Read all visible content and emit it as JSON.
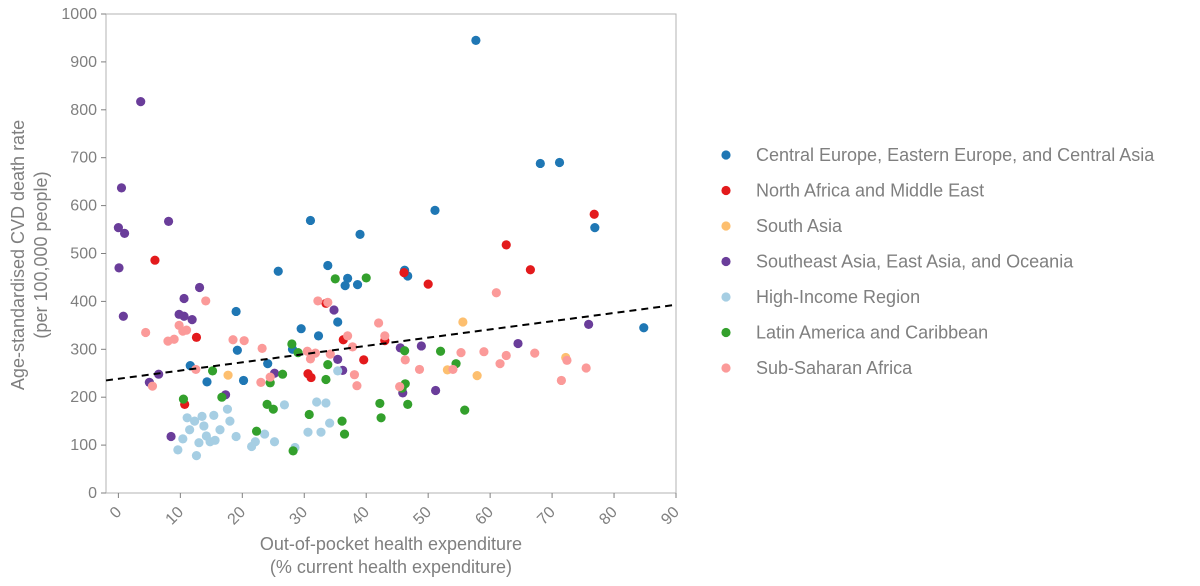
{
  "chart_data": {
    "type": "scatter",
    "title": "",
    "xlabel": "Out-of-pocket health expenditure",
    "xlabel_sub": "(% current health expenditure)",
    "ylabel": "Age-standardised CVD death rate",
    "ylabel_sub": "(per 100,000 people)",
    "xlim": [
      -2,
      90
    ],
    "ylim": [
      0,
      1000
    ],
    "x_ticks": [
      0,
      10,
      20,
      30,
      40,
      50,
      60,
      70,
      80,
      90
    ],
    "y_ticks": [
      0,
      100,
      200,
      300,
      400,
      500,
      600,
      700,
      800,
      900,
      1000
    ],
    "grid": false,
    "legend_position": "right",
    "trendline": {
      "style": "dashed",
      "color": "#000000",
      "start": [
        -2,
        235
      ],
      "end": [
        90,
        393
      ]
    },
    "series": [
      {
        "name": "Central Europe, Eastern Europe, and Central Asia",
        "color": "#1f77b4",
        "points": [
          [
            57.7,
            945
          ],
          [
            68.1,
            688
          ],
          [
            71.2,
            690
          ],
          [
            76.9,
            554
          ],
          [
            51.1,
            590
          ],
          [
            31.0,
            569
          ],
          [
            39.0,
            540
          ],
          [
            46.2,
            465
          ],
          [
            46.7,
            453
          ],
          [
            25.8,
            463
          ],
          [
            33.8,
            475
          ],
          [
            37.0,
            448
          ],
          [
            38.6,
            435
          ],
          [
            36.6,
            433
          ],
          [
            35.4,
            357
          ],
          [
            32.3,
            328
          ],
          [
            29.5,
            343
          ],
          [
            19.0,
            379
          ],
          [
            19.2,
            298
          ],
          [
            20.2,
            235
          ],
          [
            24.1,
            270
          ],
          [
            28.1,
            300
          ],
          [
            11.6,
            266
          ],
          [
            14.3,
            232
          ],
          [
            84.8,
            345
          ]
        ]
      },
      {
        "name": "North Africa and Middle East",
        "color": "#e31a1c",
        "points": [
          [
            76.8,
            582
          ],
          [
            62.6,
            518
          ],
          [
            66.5,
            466
          ],
          [
            46.1,
            460
          ],
          [
            50.0,
            436
          ],
          [
            33.5,
            396
          ],
          [
            36.3,
            320
          ],
          [
            43.0,
            318
          ],
          [
            39.6,
            278
          ],
          [
            30.6,
            249
          ],
          [
            31.1,
            241
          ],
          [
            12.6,
            325
          ],
          [
            10.7,
            185
          ],
          [
            5.9,
            486
          ]
        ]
      },
      {
        "name": "South Asia",
        "color": "#fdbf6f",
        "points": [
          [
            55.6,
            357
          ],
          [
            53.1,
            257
          ],
          [
            57.9,
            245
          ],
          [
            72.2,
            283
          ],
          [
            17.7,
            246
          ]
        ]
      },
      {
        "name": "Southeast Asia, East Asia, and Oceania",
        "color": "#6a3d9a",
        "points": [
          [
            3.6,
            817
          ],
          [
            0.5,
            637
          ],
          [
            0.0,
            554
          ],
          [
            1.0,
            542
          ],
          [
            0.1,
            470
          ],
          [
            8.1,
            567
          ],
          [
            0.8,
            369
          ],
          [
            13.1,
            429
          ],
          [
            10.6,
            406
          ],
          [
            9.8,
            373
          ],
          [
            10.6,
            369
          ],
          [
            11.9,
            362
          ],
          [
            34.8,
            382
          ],
          [
            35.4,
            279
          ],
          [
            36.2,
            256
          ],
          [
            45.5,
            303
          ],
          [
            45.9,
            209
          ],
          [
            48.9,
            307
          ],
          [
            51.2,
            214
          ],
          [
            64.5,
            312
          ],
          [
            75.9,
            352
          ],
          [
            25.2,
            250
          ],
          [
            17.3,
            205
          ],
          [
            8.5,
            118
          ],
          [
            6.5,
            248
          ],
          [
            5.0,
            231
          ]
        ]
      },
      {
        "name": "High-Income Region",
        "color": "#a6cee3",
        "points": [
          [
            11.1,
            157
          ],
          [
            11.5,
            132
          ],
          [
            12.3,
            150
          ],
          [
            13.5,
            160
          ],
          [
            13.8,
            140
          ],
          [
            14.8,
            107
          ],
          [
            15.4,
            162
          ],
          [
            17.6,
            175
          ],
          [
            16.4,
            132
          ],
          [
            18.0,
            150
          ],
          [
            19.0,
            118
          ],
          [
            21.5,
            97
          ],
          [
            22.1,
            107
          ],
          [
            23.6,
            123
          ],
          [
            25.2,
            107
          ],
          [
            26.8,
            184
          ],
          [
            28.5,
            95
          ],
          [
            30.6,
            127
          ],
          [
            32.0,
            190
          ],
          [
            33.5,
            188
          ],
          [
            34.1,
            146
          ],
          [
            32.7,
            127
          ],
          [
            35.4,
            255
          ],
          [
            9.6,
            90
          ],
          [
            10.4,
            113
          ],
          [
            12.6,
            78
          ],
          [
            13.0,
            105
          ],
          [
            14.2,
            119
          ],
          [
            15.6,
            110
          ]
        ]
      },
      {
        "name": "Latin America and Caribbean",
        "color": "#33a02c",
        "points": [
          [
            35.0,
            447
          ],
          [
            40.0,
            449
          ],
          [
            28.0,
            311
          ],
          [
            29.0,
            293
          ],
          [
            33.5,
            237
          ],
          [
            33.8,
            268
          ],
          [
            24.0,
            185
          ],
          [
            24.5,
            230
          ],
          [
            25.0,
            175
          ],
          [
            26.5,
            248
          ],
          [
            30.8,
            164
          ],
          [
            36.1,
            150
          ],
          [
            36.5,
            123
          ],
          [
            42.2,
            187
          ],
          [
            42.4,
            157
          ],
          [
            45.8,
            219
          ],
          [
            46.3,
            228
          ],
          [
            46.7,
            185
          ],
          [
            46.2,
            297
          ],
          [
            52.0,
            296
          ],
          [
            54.5,
            270
          ],
          [
            55.9,
            173
          ],
          [
            28.2,
            88
          ],
          [
            16.7,
            200
          ],
          [
            15.2,
            255
          ],
          [
            10.5,
            196
          ],
          [
            22.3,
            129
          ]
        ]
      },
      {
        "name": "Sub-Saharan Africa",
        "color": "#fb9a99",
        "points": [
          [
            4.4,
            335
          ],
          [
            5.5,
            223
          ],
          [
            8.0,
            317
          ],
          [
            9.0,
            321
          ],
          [
            9.8,
            350
          ],
          [
            10.4,
            338
          ],
          [
            11.0,
            340
          ],
          [
            12.5,
            258
          ],
          [
            14.1,
            401
          ],
          [
            18.5,
            320
          ],
          [
            20.3,
            318
          ],
          [
            23.2,
            302
          ],
          [
            23.0,
            231
          ],
          [
            24.5,
            242
          ],
          [
            30.5,
            296
          ],
          [
            31.0,
            280
          ],
          [
            31.8,
            292
          ],
          [
            32.2,
            401
          ],
          [
            33.8,
            398
          ],
          [
            34.2,
            290
          ],
          [
            37.0,
            328
          ],
          [
            37.8,
            305
          ],
          [
            38.1,
            247
          ],
          [
            38.5,
            224
          ],
          [
            42.0,
            355
          ],
          [
            43.0,
            328
          ],
          [
            45.4,
            222
          ],
          [
            46.3,
            278
          ],
          [
            48.6,
            258
          ],
          [
            54.0,
            258
          ],
          [
            55.3,
            293
          ],
          [
            59.0,
            295
          ],
          [
            61.0,
            418
          ],
          [
            61.6,
            270
          ],
          [
            62.6,
            287
          ],
          [
            67.2,
            292
          ],
          [
            71.5,
            235
          ],
          [
            72.4,
            277
          ],
          [
            75.5,
            261
          ]
        ]
      }
    ]
  }
}
